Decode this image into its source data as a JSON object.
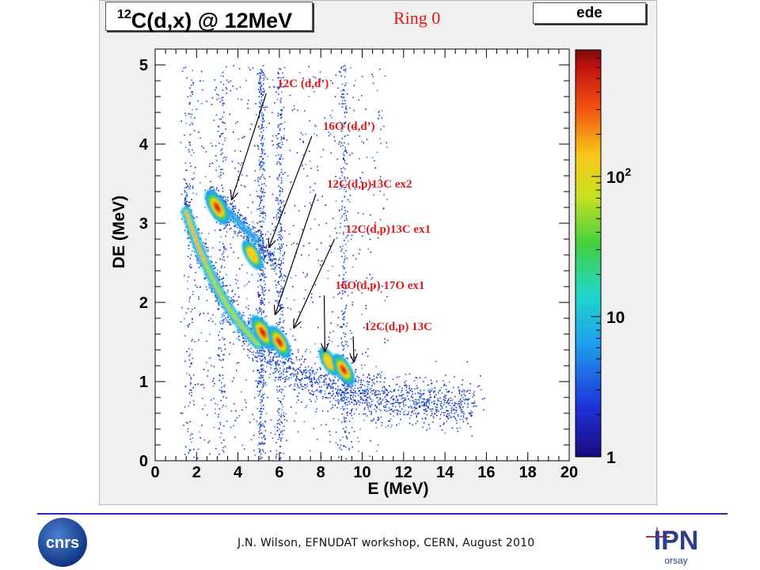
{
  "header": {
    "reaction_mass": "12",
    "reaction_rest": "C(d,x) @ 12MeV",
    "ring": "Ring 0",
    "ede": "ede"
  },
  "footer": {
    "text": "J.N. Wilson,  EFNUDAT workshop, CERN, August 2010",
    "cnrs_logo_text": "cnrs",
    "ipn_logo_text": "IPN",
    "ipn_logo_sub": "orsay"
  },
  "colors": {
    "label": "#e01818",
    "arrow": "#000000",
    "frame_bg": "#f0f0f0"
  },
  "chart_data": {
    "type": "heatmap",
    "xlabel": "E (MeV)",
    "ylabel": "DE (MeV)",
    "xlim": [
      0,
      20
    ],
    "ylim": [
      0,
      5.2
    ],
    "xticks": [
      "0",
      "2",
      "4",
      "6",
      "8",
      "10",
      "12",
      "14",
      "16",
      "18",
      "20"
    ],
    "yticks": [
      "0",
      "1",
      "2",
      "3",
      "4",
      "5"
    ],
    "colorbar": {
      "scale": "log",
      "range": [
        1,
        800
      ],
      "ticks": [
        {
          "value": 1,
          "label": "1"
        },
        {
          "value": 10,
          "label": "10"
        },
        {
          "value": 100,
          "label": "10",
          "sup": "2"
        }
      ]
    },
    "loci": [
      {
        "x": 3.0,
        "y": 3.2,
        "peak": 500
      },
      {
        "x": 4.7,
        "y": 2.6,
        "peak": 60
      },
      {
        "x": 5.2,
        "y": 1.62,
        "peak": 400
      },
      {
        "x": 6.0,
        "y": 1.5,
        "peak": 200
      },
      {
        "x": 8.4,
        "y": 1.25,
        "peak": 40
      },
      {
        "x": 9.1,
        "y": 1.15,
        "peak": 150
      }
    ],
    "annotations": [
      {
        "text": "12C (d,d’)",
        "x": 5.9,
        "y": 4.72,
        "arrow_to": [
          3.7,
          3.3
        ]
      },
      {
        "text": "16O (d,d’)",
        "x": 8.1,
        "y": 4.18,
        "arrow_to": [
          5.5,
          2.7
        ]
      },
      {
        "text": "12C(d,p)13C ex2",
        "x": 8.3,
        "y": 3.45,
        "arrow_to": [
          5.8,
          1.85
        ]
      },
      {
        "text": "12C(d,p)13C ex1",
        "x": 9.2,
        "y": 2.88,
        "arrow_to": [
          6.7,
          1.68
        ]
      },
      {
        "text": "16O(d,p) 17O ex1",
        "x": 8.7,
        "y": 2.17,
        "arrow_to": [
          8.2,
          1.38
        ]
      },
      {
        "text": "12C(d,p) 13C",
        "x": 10.1,
        "y": 1.65,
        "arrow_to": [
          9.6,
          1.25
        ]
      }
    ]
  }
}
